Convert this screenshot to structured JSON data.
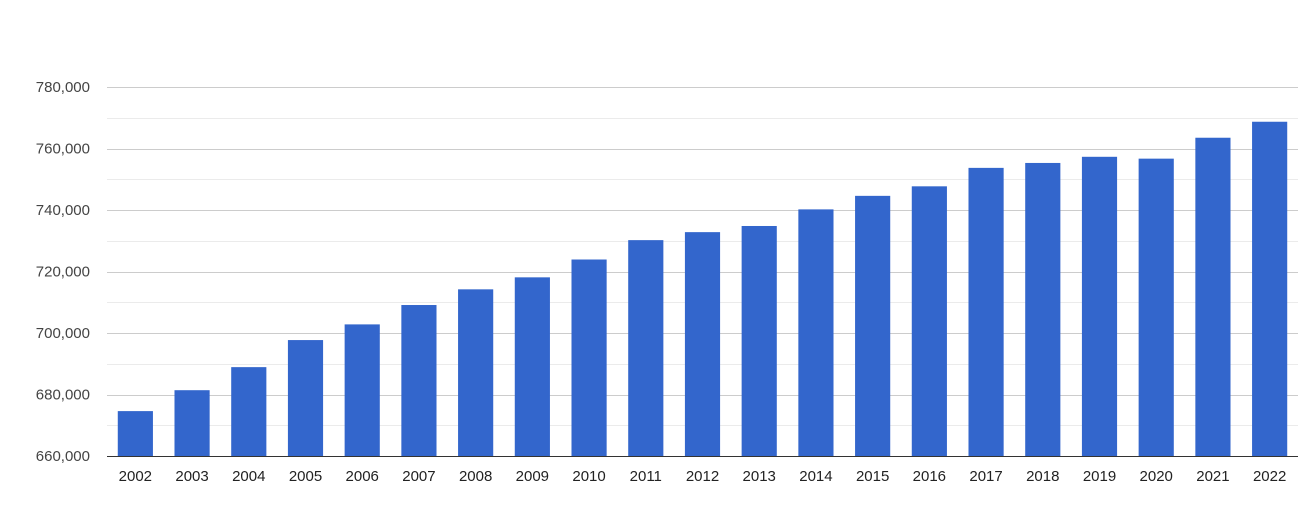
{
  "chart_data": {
    "type": "bar",
    "title": "",
    "xlabel": "",
    "ylabel": "",
    "categories": [
      "2002",
      "2003",
      "2004",
      "2005",
      "2006",
      "2007",
      "2008",
      "2009",
      "2010",
      "2011",
      "2012",
      "2013",
      "2014",
      "2015",
      "2016",
      "2017",
      "2018",
      "2019",
      "2020",
      "2021",
      "2022"
    ],
    "values": [
      674600,
      681400,
      688900,
      697700,
      702800,
      709100,
      714200,
      718100,
      723900,
      730200,
      732800,
      734800,
      740200,
      744600,
      747700,
      753700,
      755300,
      757300,
      756700,
      763500,
      768700
    ],
    "ylim": [
      660000,
      780000
    ],
    "y_ticks": [
      "660,000",
      "680,000",
      "700,000",
      "720,000",
      "740,000",
      "760,000",
      "780,000"
    ],
    "y_tick_values": [
      660000,
      680000,
      700000,
      720000,
      740000,
      760000,
      780000
    ],
    "grid": true,
    "legend": "none",
    "bar_color": "#3366cc",
    "grid_color": "#cccccc",
    "minor_grid_color": "#ebebeb"
  }
}
